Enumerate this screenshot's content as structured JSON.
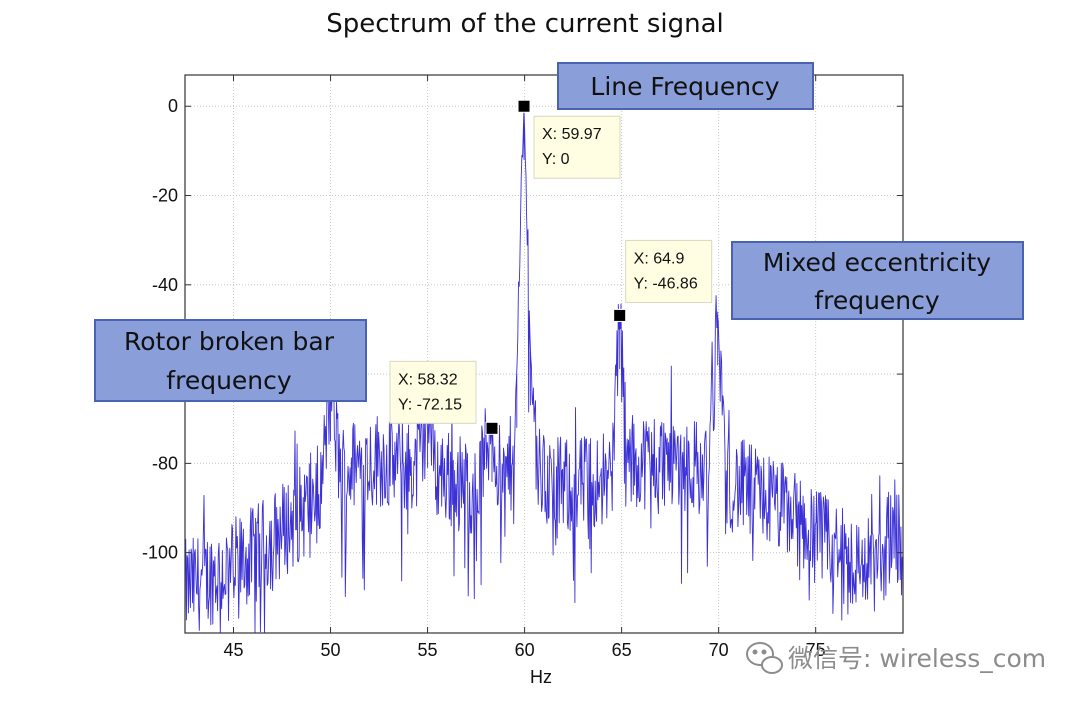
{
  "chart_data": {
    "type": "line",
    "title": "Spectrum of the current signal",
    "xlabel": "Hz",
    "ylabel": "",
    "xlim": [
      42.5,
      79.5
    ],
    "ylim": [
      -118,
      7
    ],
    "x_ticks": [
      45,
      50,
      55,
      60,
      65,
      70,
      75
    ],
    "x_tick_labels": [
      "45",
      "50",
      "55",
      "60",
      "65",
      "70",
      "75"
    ],
    "y_ticks": [
      0,
      -20,
      -40,
      -60,
      -80,
      -100
    ],
    "y_tick_labels": [
      "0",
      "-20",
      "-40",
      "",
      "-80",
      "-100"
    ],
    "grid": true,
    "color": "#3b30d6",
    "series": [
      {
        "points": [
          [
            42.5,
            -108
          ],
          [
            43.5,
            -106
          ],
          [
            44.5,
            -104
          ],
          [
            45.5,
            -102
          ],
          [
            46.5,
            -99
          ],
          [
            47.5,
            -95
          ],
          [
            48.5,
            -91
          ],
          [
            49.5,
            -86
          ],
          [
            50.0,
            -63
          ],
          [
            50.5,
            -82
          ],
          [
            51.5,
            -80
          ],
          [
            52.5,
            -79
          ],
          [
            53.5,
            -80
          ],
          [
            54.5,
            -81
          ],
          [
            55.0,
            -69
          ],
          [
            55.5,
            -82
          ],
          [
            56.5,
            -84
          ],
          [
            57.5,
            -86
          ],
          [
            58.32,
            -72.15
          ],
          [
            58.8,
            -85
          ],
          [
            59.3,
            -80
          ],
          [
            59.6,
            -60
          ],
          [
            59.97,
            0
          ],
          [
            60.3,
            -55
          ],
          [
            60.7,
            -82
          ],
          [
            61.5,
            -85
          ],
          [
            62.5,
            -85
          ],
          [
            63.5,
            -84
          ],
          [
            64.5,
            -82
          ],
          [
            64.9,
            -46.86
          ],
          [
            65.3,
            -80
          ],
          [
            66.5,
            -79
          ],
          [
            67.5,
            -79
          ],
          [
            68.5,
            -80
          ],
          [
            69.5,
            -82
          ],
          [
            69.95,
            -46
          ],
          [
            70.4,
            -84
          ],
          [
            71.5,
            -86
          ],
          [
            72.5,
            -88
          ],
          [
            73.5,
            -91
          ],
          [
            74.5,
            -94
          ],
          [
            75.5,
            -98
          ],
          [
            76.5,
            -101
          ],
          [
            77.5,
            -103
          ],
          [
            78.5,
            -102
          ],
          [
            79.0,
            -90
          ],
          [
            79.5,
            -104
          ]
        ]
      }
    ],
    "noise_amplitude": 11,
    "data_tips": [
      {
        "x": 59.97,
        "y": 0,
        "x_text": "X: 59.97",
        "y_text": "Y: 0"
      },
      {
        "x": 58.32,
        "y": -72.15,
        "x_text": "X: 58.32",
        "y_text": "Y: -72.15"
      },
      {
        "x": 64.9,
        "y": -46.86,
        "x_text": "X: 64.9",
        "y_text": "Y: -46.86"
      }
    ],
    "annotations": [
      {
        "lines": [
          "Line Frequency"
        ]
      },
      {
        "lines": [
          "Mixed eccentricity",
          "frequency"
        ]
      },
      {
        "lines": [
          "Rotor broken bar",
          "frequency"
        ]
      }
    ]
  },
  "watermark": {
    "text": "微信号: wireless_com",
    "icon": "wechat-icon"
  }
}
